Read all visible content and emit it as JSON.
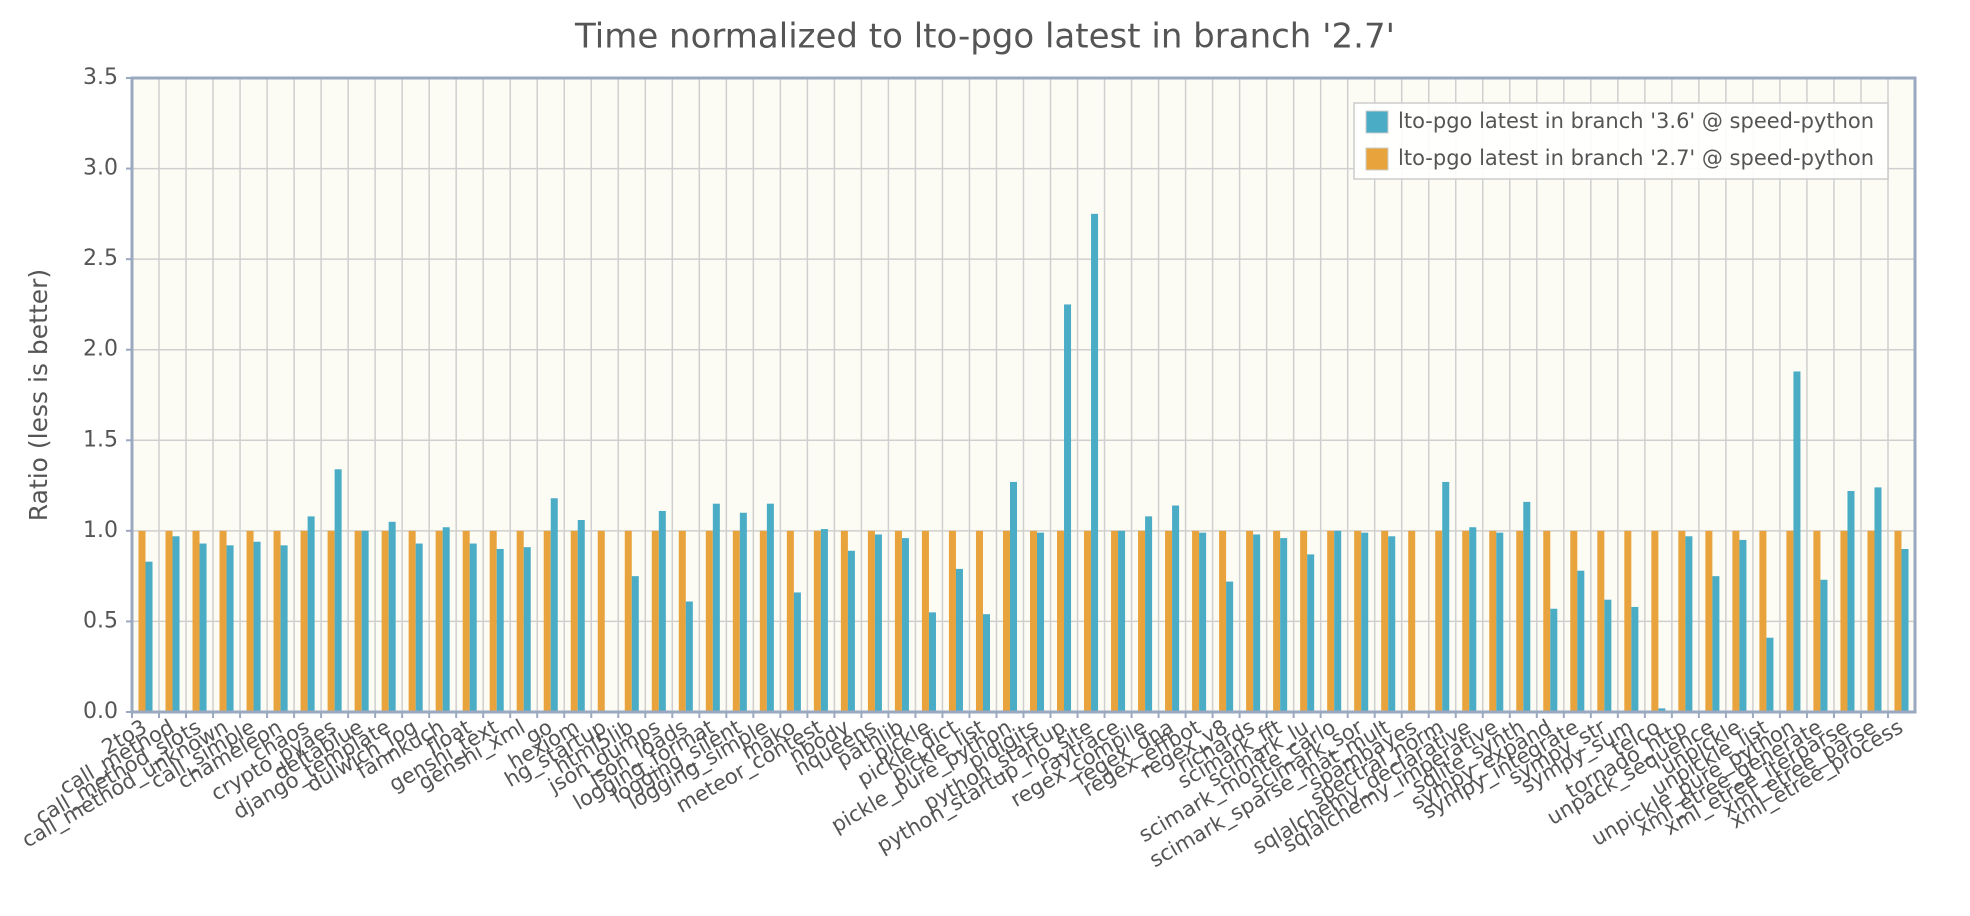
{
  "chart_data": {
    "type": "bar",
    "title": "Time normalized to lto-pgo latest in branch '2.7'",
    "y_label": "Ratio  (less is better)",
    "categories": [
      "2to3",
      "call_method",
      "call_method_slots",
      "call_method_unknown",
      "call_simple",
      "chameleon",
      "chaos",
      "crypto_pyaes",
      "deltablue",
      "django_template",
      "dulwich_log",
      "fannkuch",
      "float",
      "genshi_text",
      "genshi_xml",
      "go",
      "hexiom",
      "hg_startup",
      "html5lib",
      "json_dumps",
      "json_loads",
      "logging_format",
      "logging_silent",
      "logging_simple",
      "mako",
      "meteor_contest",
      "nbody",
      "nqueens",
      "pathlib",
      "pickle",
      "pickle_dict",
      "pickle_list",
      "pickle_pure_python",
      "pidigits",
      "python_startup",
      "python_startup_no_site",
      "raytrace",
      "regex_compile",
      "regex_dna",
      "regex_effbot",
      "regex_v8",
      "richards",
      "scimark_fft",
      "scimark_lu",
      "scimark_monte_carlo",
      "scimark_sor",
      "scimark_sparse_mat_mult",
      "spambayes",
      "spectral_norm",
      "sqlalchemy_declarative",
      "sqlalchemy_imperative",
      "sqlite_synth",
      "sympy_expand",
      "sympy_integrate",
      "sympy_str",
      "sympy_sum",
      "telco",
      "tornado_http",
      "unpack_sequence",
      "unpickle",
      "unpickle_list",
      "unpickle_pure_python",
      "xml_etree_generate",
      "xml_etree_iterparse",
      "xml_etree_parse",
      "xml_etree_process"
    ],
    "series": [
      {
        "name": "lto-pgo latest in branch '2.7' @ speed-python",
        "color": "#e8a33d",
        "values": [
          1,
          1,
          1,
          1,
          1,
          1,
          1,
          1,
          1,
          1,
          1,
          1,
          1,
          1,
          1,
          1,
          1,
          1,
          1,
          1,
          1,
          1,
          1,
          1,
          1,
          1,
          1,
          1,
          1,
          1,
          1,
          1,
          1,
          1,
          1,
          1,
          1,
          1,
          1,
          1,
          1,
          1,
          1,
          1,
          1,
          1,
          1,
          1,
          1,
          1,
          1,
          1,
          1,
          1,
          1,
          1,
          1,
          1,
          1,
          1,
          1,
          1,
          1,
          1,
          1,
          1
        ]
      },
      {
        "name": "lto-pgo latest in branch '3.6' @ speed-python",
        "color": "#4bacc6",
        "values": [
          0.83,
          0.97,
          0.93,
          0.92,
          0.94,
          0.92,
          1.08,
          1.34,
          1.0,
          1.05,
          0.93,
          1.02,
          0.93,
          0.9,
          0.91,
          1.18,
          1.06,
          null,
          0.75,
          1.11,
          0.61,
          1.15,
          1.1,
          1.15,
          0.66,
          1.01,
          0.89,
          0.98,
          0.96,
          0.55,
          0.79,
          0.54,
          1.27,
          0.99,
          2.25,
          2.75,
          1.0,
          1.08,
          1.14,
          0.99,
          0.72,
          0.98,
          0.96,
          0.87,
          1.0,
          0.99,
          0.97,
          null,
          1.27,
          1.02,
          0.99,
          1.16,
          0.57,
          0.78,
          0.62,
          0.58,
          0.02,
          0.97,
          0.75,
          0.95,
          0.41,
          1.88,
          0.73,
          1.22,
          1.24,
          0.9
        ]
      }
    ],
    "legend_order": [
      1,
      0
    ],
    "ylim": [
      0,
      3.5
    ],
    "yticks": [
      {
        "value": 0,
        "label": "0.0"
      },
      0.5,
      {
        "value": 1,
        "label": "1.0"
      },
      1.5,
      {
        "value": 2,
        "label": "2.0"
      },
      2.5,
      {
        "value": 3,
        "label": "3.0"
      },
      3.5
    ],
    "grid": true
  }
}
